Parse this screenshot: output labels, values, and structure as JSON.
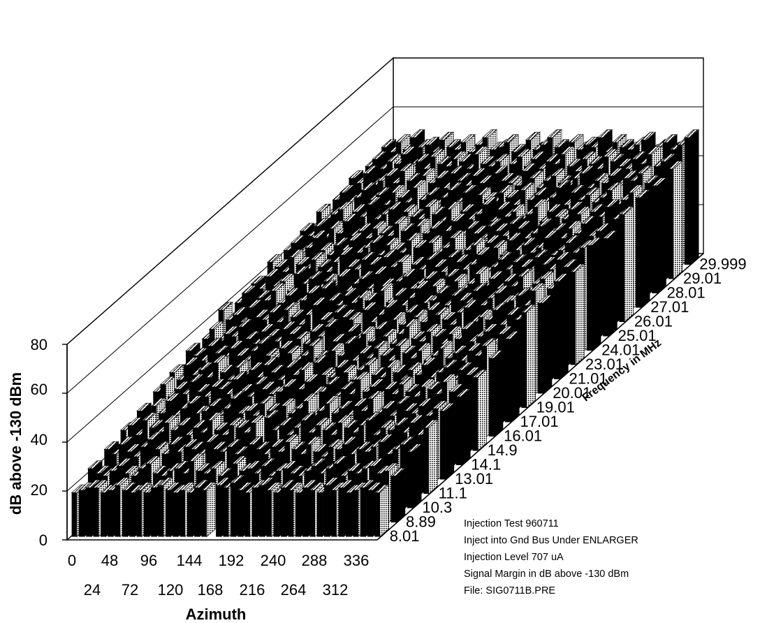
{
  "chart_data": {
    "type": "bar",
    "subtype": "3d-bar",
    "y_axis": {
      "label": "dB above -130 dBm",
      "ticks": [
        "0",
        "20",
        "40",
        "60",
        "80"
      ],
      "range": [
        0,
        80
      ]
    },
    "x_axis": {
      "label": "Azimuth",
      "ticks_row1": [
        "0",
        "48",
        "96",
        "144",
        "192",
        "240",
        "288",
        "336"
      ],
      "ticks_row2": [
        "24",
        "72",
        "120",
        "168",
        "216",
        "264",
        "312"
      ]
    },
    "z_axis": {
      "label": "Frequency in MHz",
      "ticks": [
        "8.01",
        "8.89",
        "10.3",
        "11.1",
        "13.01",
        "14.1",
        "14.9",
        "16.01",
        "17.01",
        "19.01",
        "20.01",
        "21.01",
        "23.01",
        "24.01",
        "25.01",
        "26.01",
        "27.01",
        "28.01",
        "29.01",
        "29.999"
      ]
    },
    "azimuth_count": 43,
    "values_by_frequency": [
      [
        18,
        19,
        20,
        20,
        18,
        19,
        21,
        19,
        18,
        19,
        18,
        20,
        21,
        19,
        18,
        19,
        18,
        20,
        19,
        0,
        21,
        20,
        22,
        19,
        18,
        20,
        21,
        19,
        18,
        20,
        19,
        18,
        20,
        19,
        18,
        21,
        19,
        20,
        18,
        19,
        20,
        19,
        18
      ],
      [
        22,
        20,
        19,
        21,
        23,
        20,
        19,
        22,
        24,
        20,
        19,
        21,
        22,
        20,
        25,
        21,
        20,
        22,
        19,
        0,
        24,
        21,
        22,
        20,
        23,
        19,
        21,
        22,
        20,
        19,
        21,
        23,
        20,
        22,
        24,
        19,
        21,
        20,
        22,
        23,
        20,
        21,
        19
      ],
      [
        24,
        22,
        26,
        23,
        21,
        25,
        28,
        24,
        22,
        26,
        23,
        25,
        24,
        22,
        27,
        24,
        23,
        25,
        22,
        0,
        26,
        24,
        22,
        25,
        23,
        27,
        24,
        22,
        26,
        23,
        21,
        25,
        24,
        26,
        22,
        24,
        23,
        25,
        27,
        22,
        24,
        26,
        23
      ],
      [
        26,
        28,
        24,
        30,
        27,
        25,
        29,
        26,
        28,
        24,
        27,
        25,
        30,
        26,
        24,
        28,
        27,
        25,
        29,
        0,
        31,
        26,
        28,
        24,
        27,
        30,
        25,
        28,
        26,
        24,
        29,
        27,
        25,
        28,
        30,
        24,
        27,
        26,
        28,
        25,
        29,
        24,
        27
      ],
      [
        28,
        25,
        30,
        27,
        32,
        26,
        29,
        31,
        27,
        28,
        30,
        26,
        29,
        33,
        27,
        28,
        26,
        31,
        28,
        0,
        30,
        27,
        29,
        32,
        26,
        28,
        31,
        27,
        29,
        26,
        30,
        28,
        33,
        27,
        29,
        26,
        31,
        28,
        27,
        30,
        26,
        29,
        28
      ],
      [
        30,
        33,
        28,
        31,
        29,
        34,
        30,
        28,
        32,
        31,
        29,
        35,
        30,
        28,
        33,
        31,
        29,
        30,
        32,
        0,
        31,
        34,
        29,
        30,
        33,
        28,
        31,
        29,
        35,
        30,
        32,
        28,
        31,
        29,
        33,
        30,
        28,
        32,
        31,
        29,
        34,
        30,
        28
      ],
      [
        32,
        29,
        35,
        31,
        33,
        30,
        36,
        32,
        29,
        34,
        31,
        33,
        30,
        35,
        32,
        29,
        34,
        31,
        33,
        0,
        36,
        31,
        30,
        34,
        32,
        29,
        33,
        35,
        31,
        30,
        34,
        32,
        29,
        33,
        31,
        35,
        30,
        32,
        34,
        29,
        33,
        31,
        30
      ],
      [
        35,
        33,
        31,
        37,
        34,
        32,
        36,
        33,
        31,
        35,
        38,
        33,
        32,
        36,
        34,
        31,
        33,
        37,
        32,
        0,
        35,
        33,
        38,
        31,
        34,
        32,
        36,
        33,
        31,
        37,
        34,
        32,
        35,
        31,
        33,
        36,
        32,
        34,
        31,
        35,
        33,
        37,
        32
      ],
      [
        34,
        38,
        33,
        36,
        35,
        39,
        34,
        32,
        37,
        35,
        33,
        38,
        36,
        34,
        32,
        37,
        35,
        39,
        33,
        0,
        37,
        34,
        36,
        33,
        38,
        35,
        32,
        36,
        39,
        34,
        33,
        37,
        35,
        32,
        36,
        34,
        38,
        33,
        35,
        37,
        32,
        36,
        34
      ],
      [
        40,
        36,
        38,
        35,
        41,
        37,
        36,
        39,
        35,
        40,
        37,
        34,
        38,
        42,
        36,
        35,
        39,
        37,
        36,
        0,
        40,
        35,
        38,
        41,
        36,
        34,
        39,
        37,
        35,
        40,
        38,
        36,
        34,
        39,
        41,
        35,
        37,
        36,
        40,
        34,
        38,
        36,
        39
      ],
      [
        37,
        41,
        36,
        39,
        38,
        42,
        37,
        40,
        36,
        38,
        41,
        37,
        43,
        38,
        36,
        40,
        37,
        39,
        38,
        0,
        42,
        37,
        40,
        36,
        39,
        43,
        37,
        38,
        41,
        36,
        40,
        38,
        37,
        42,
        36,
        39,
        41,
        37,
        38,
        40,
        36,
        42,
        37
      ],
      [
        39,
        37,
        42,
        38,
        40,
        36,
        43,
        39,
        41,
        37,
        40,
        38,
        42,
        36,
        39,
        41,
        37,
        43,
        38,
        0,
        40,
        42,
        37,
        39,
        41,
        38,
        36,
        42,
        40,
        37,
        39,
        43,
        38,
        41,
        37,
        40,
        38,
        42,
        36,
        39,
        41,
        37,
        40
      ],
      [
        42,
        40,
        38,
        44,
        41,
        39,
        43,
        40,
        38,
        42,
        45,
        40,
        39,
        43,
        41,
        38,
        44,
        40,
        42,
        0,
        41,
        39,
        43,
        40,
        38,
        44,
        42,
        39,
        41,
        45,
        38,
        40,
        43,
        39,
        42,
        40,
        38,
        44,
        41,
        39,
        43,
        40,
        38
      ],
      [
        41,
        44,
        40,
        42,
        46,
        41,
        39,
        43,
        41,
        45,
        40,
        42,
        44,
        39,
        43,
        41,
        40,
        45,
        42,
        0,
        44,
        40,
        42,
        46,
        39,
        41,
        43,
        40,
        44,
        42,
        39,
        45,
        41,
        43,
        40,
        42,
        46,
        39,
        41,
        44,
        40,
        42,
        43
      ],
      [
        43,
        41,
        45,
        40,
        44,
        42,
        47,
        41,
        43,
        40,
        44,
        42,
        41,
        46,
        43,
        40,
        45,
        42,
        44,
        0,
        43,
        47,
        41,
        44,
        42,
        40,
        45,
        43,
        41,
        46,
        44,
        40,
        42,
        45,
        41,
        43,
        40,
        44,
        42,
        46,
        41,
        43,
        40
      ],
      [
        45,
        42,
        44,
        46,
        41,
        45,
        43,
        48,
        42,
        44,
        46,
        41,
        45,
        43,
        42,
        47,
        44,
        41,
        46,
        0,
        45,
        42,
        44,
        48,
        41,
        46,
        43,
        45,
        42,
        44,
        47,
        41,
        45,
        43,
        42,
        46,
        44,
        41,
        45,
        43,
        47,
        42,
        44
      ],
      [
        44,
        47,
        43,
        45,
        48,
        44,
        46,
        42,
        47,
        45,
        43,
        49,
        44,
        46,
        42,
        45,
        48,
        43,
        47,
        0,
        46,
        44,
        43,
        47,
        45,
        42,
        48,
        44,
        46,
        43,
        45,
        49,
        42,
        47,
        44,
        46,
        43,
        45,
        48,
        42,
        44,
        47,
        45
      ],
      [
        47,
        45,
        49,
        44,
        46,
        48,
        45,
        50,
        46,
        44,
        48,
        45,
        47,
        43,
        49,
        46,
        44,
        48,
        45,
        0,
        49,
        46,
        45,
        44,
        50,
        47,
        43,
        46,
        48,
        45,
        44,
        47,
        49,
        43,
        46,
        45,
        48,
        44,
        47,
        46,
        49,
        45,
        44
      ],
      [
        46,
        49,
        45,
        48,
        47,
        51,
        46,
        48,
        45,
        50,
        47,
        46,
        49,
        48,
        45,
        51,
        47,
        46,
        48,
        0,
        47,
        50,
        46,
        49,
        45,
        48,
        47,
        51,
        46,
        44,
        49,
        47,
        45,
        50,
        48,
        46,
        45,
        49,
        47,
        51,
        46,
        48,
        45
      ],
      [
        48,
        46,
        50,
        47,
        52,
        48,
        49,
        46,
        51,
        48,
        47,
        50,
        46,
        49,
        52,
        47,
        48,
        50,
        46,
        0,
        51,
        47,
        49,
        52,
        48,
        46,
        50,
        47,
        49,
        48,
        52,
        46,
        50,
        48,
        47,
        49,
        51,
        46,
        48,
        50,
        47,
        49,
        52
      ]
    ]
  },
  "annotations": {
    "lines": [
      "Injection Test 960711",
      "Inject into Gnd Bus Under ENLARGER",
      "Injection Level 707 uA",
      "Signal Margin in dB above -130 dBm",
      "File:  SIG0711B.PRE"
    ]
  }
}
